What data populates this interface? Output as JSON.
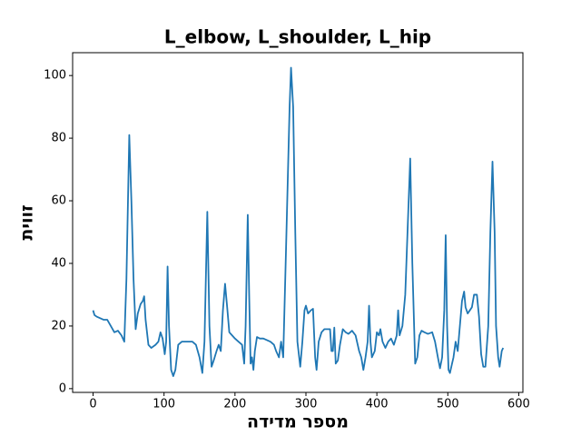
{
  "chart_data": {
    "type": "line",
    "title": "L_elbow, L_shoulder, L_hip",
    "xlabel": "מספר מדידה",
    "ylabel": "זווית",
    "x": [
      0,
      2,
      5,
      10,
      15,
      20,
      25,
      30,
      35,
      40,
      44,
      47,
      51,
      54,
      57,
      60,
      63,
      67,
      70,
      72,
      74,
      78,
      82,
      88,
      92,
      95,
      98,
      101,
      103,
      105,
      107,
      110,
      113,
      116,
      120,
      125,
      130,
      135,
      140,
      145,
      150,
      154,
      157,
      161,
      164,
      167,
      170,
      174,
      177,
      180,
      183,
      186,
      189,
      192,
      196,
      200,
      205,
      210,
      213,
      215,
      218,
      220,
      222,
      224,
      226,
      228,
      231,
      235,
      240,
      245,
      250,
      255,
      258,
      262,
      265,
      268,
      272,
      277,
      279,
      282,
      285,
      288,
      292,
      295,
      298,
      300,
      303,
      307,
      310,
      313,
      315,
      318,
      322,
      326,
      330,
      334,
      336,
      338,
      340,
      342,
      345,
      348,
      352,
      356,
      360,
      365,
      370,
      375,
      378,
      381,
      384,
      387,
      389,
      391,
      393,
      397,
      400,
      403,
      405,
      408,
      412,
      416,
      420,
      424,
      428,
      430,
      432,
      436,
      440,
      447,
      450,
      454,
      457,
      460,
      463,
      467,
      472,
      478,
      482,
      486,
      489,
      492,
      495,
      497,
      499,
      501,
      503,
      505,
      508,
      511,
      514,
      517,
      520,
      523,
      525,
      528,
      531,
      534,
      537,
      541,
      544,
      547,
      550,
      553,
      557,
      560,
      563,
      566,
      568,
      571,
      573,
      576,
      578
    ],
    "series": [
      {
        "name": "L_elbow, L_shoulder, L_hip",
        "color": "#1f77b4",
        "values": [
          25,
          23.5,
          23,
          22.5,
          22,
          22,
          20,
          18,
          18.5,
          17,
          15,
          35,
          81,
          60,
          35,
          19,
          24,
          27,
          28,
          29.5,
          22,
          14,
          13,
          14,
          15,
          18,
          16,
          11,
          15,
          39,
          20,
          6,
          4,
          6,
          14,
          15,
          15,
          15,
          15,
          14,
          10,
          5,
          15,
          56.5,
          20,
          7,
          9,
          12,
          14,
          12,
          25,
          33.5,
          26,
          18,
          17,
          16,
          15,
          14,
          8,
          20,
          55.5,
          30,
          8,
          10,
          6,
          12,
          16.5,
          16,
          16,
          15.5,
          15,
          14,
          12,
          10,
          15,
          10,
          45,
          90,
          102.5,
          90,
          50,
          15,
          7,
          15,
          25,
          26.5,
          24,
          25,
          25.5,
          10,
          6,
          15,
          18,
          19,
          19,
          19,
          12,
          12,
          19.5,
          8,
          9,
          14,
          19,
          18,
          17.5,
          18.5,
          17,
          12,
          10,
          6,
          10,
          15,
          26.5,
          15,
          10,
          12,
          18,
          17,
          19,
          15,
          13,
          15,
          16,
          14,
          17,
          25,
          17,
          20,
          30,
          73.5,
          40,
          8,
          10,
          17,
          18.5,
          18,
          17.5,
          18,
          15,
          10,
          6.5,
          10,
          25,
          49,
          20,
          6,
          5,
          7,
          10,
          15,
          12,
          20,
          28,
          31,
          26,
          24,
          25,
          26,
          30,
          30,
          23,
          11,
          7,
          7,
          20,
          50,
          72.5,
          50,
          20,
          10,
          7,
          12,
          13
        ]
      }
    ],
    "xlim": [
      -28.85,
      605.85
    ],
    "ylim": [
      -1.2,
      107.3
    ],
    "xticks": [
      0,
      100,
      200,
      300,
      400,
      500,
      600
    ],
    "yticks": [
      0,
      20,
      40,
      60,
      80,
      100
    ],
    "grid": false
  }
}
